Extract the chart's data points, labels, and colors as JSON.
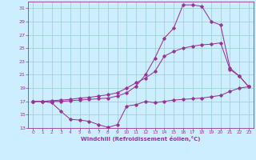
{
  "xlabel": "Windchill (Refroidissement éolien,°C)",
  "bg_color": "#cceeff",
  "plot_bg": "#cceeff",
  "line_color": "#993399",
  "grid_color": "#99cccc",
  "xlim": [
    -0.5,
    23.5
  ],
  "ylim": [
    13,
    32
  ],
  "xticks": [
    0,
    1,
    2,
    3,
    4,
    5,
    6,
    7,
    8,
    9,
    10,
    11,
    12,
    13,
    14,
    15,
    16,
    17,
    18,
    19,
    20,
    21,
    22,
    23
  ],
  "yticks": [
    13,
    15,
    17,
    19,
    21,
    23,
    25,
    27,
    29,
    31
  ],
  "series1_x": [
    0,
    1,
    2,
    3,
    4,
    5,
    6,
    7,
    8,
    9,
    10,
    11,
    12,
    13,
    14,
    15,
    16,
    17,
    18,
    19,
    20,
    21,
    22,
    23
  ],
  "series1_y": [
    17.0,
    17.0,
    16.8,
    15.5,
    14.3,
    14.2,
    14.0,
    13.5,
    13.1,
    13.5,
    16.3,
    16.5,
    17.0,
    16.8,
    17.0,
    17.2,
    17.3,
    17.4,
    17.5,
    17.7,
    17.9,
    18.5,
    19.0,
    19.2
  ],
  "series2_x": [
    0,
    1,
    2,
    3,
    4,
    5,
    6,
    7,
    8,
    9,
    10,
    11,
    12,
    13,
    14,
    15,
    16,
    17,
    18,
    19,
    20,
    21,
    22,
    23
  ],
  "series2_y": [
    17.0,
    17.0,
    17.1,
    17.2,
    17.3,
    17.5,
    17.6,
    17.8,
    18.0,
    18.3,
    19.0,
    19.8,
    20.5,
    21.5,
    23.8,
    24.5,
    25.0,
    25.3,
    25.5,
    25.6,
    25.8,
    21.8,
    20.8,
    19.2
  ],
  "series3_x": [
    0,
    1,
    2,
    3,
    4,
    5,
    6,
    7,
    8,
    9,
    10,
    11,
    12,
    13,
    14,
    15,
    16,
    17,
    18,
    19,
    20,
    21,
    22,
    23
  ],
  "series3_y": [
    17.0,
    17.0,
    17.0,
    17.0,
    17.1,
    17.2,
    17.3,
    17.4,
    17.5,
    17.8,
    18.3,
    19.3,
    21.0,
    23.5,
    26.5,
    28.0,
    31.5,
    31.5,
    31.3,
    29.0,
    28.5,
    22.0,
    20.8,
    19.2
  ]
}
